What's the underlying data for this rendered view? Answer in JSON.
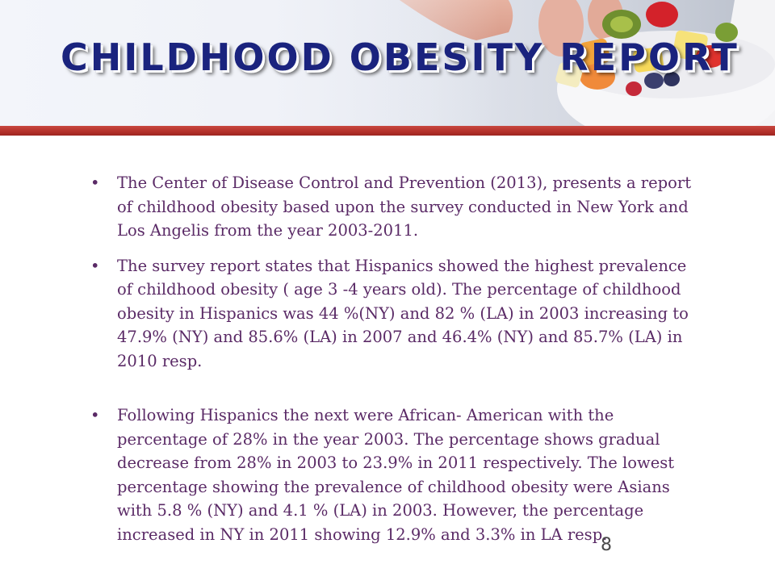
{
  "slide": {
    "title": "Childhood Obesity  Report",
    "page_number": "8",
    "bullets": [
      {
        "marker": "•",
        "text": "The Center of Disease Control and Prevention (2013),  presents a report of childhood obesity based upon the survey conducted in New York and Los Angelis from the year 2003-2011."
      },
      {
        "marker": "•",
        "text": "The survey report states that Hispanics showed the highest prevalence of childhood obesity ( age 3 -4 years old). The percentage of childhood obesity in Hispanics was 44 %(NY) and 82 % (LA)   in 2003 increasing to 47.9% (NY) and 85.6% (LA) in 2007 and 46.4% (NY) and 85.7% (LA) in 2010 resp."
      },
      {
        "marker": "•",
        "text": "Following Hispanics the next were African- American with the percentage of  28% in the year 2003. The percentage shows gradual decrease from 28% in 2003 to 23.9% in 2011 respectively. The lowest percentage showing the prevalence of childhood obesity were Asians with 5.8 % (NY) and 4.1 % (LA) in 2003. However, the percentage increased in NY in 2011 showing 12.9% and 3.3% in LA resp."
      }
    ]
  },
  "colors": {
    "title": "#1a237e",
    "body_text": "#5a2a66",
    "accent_bar": "#b3302a"
  },
  "images": {
    "header_photo": "hand-holding-fruit-bowl"
  }
}
